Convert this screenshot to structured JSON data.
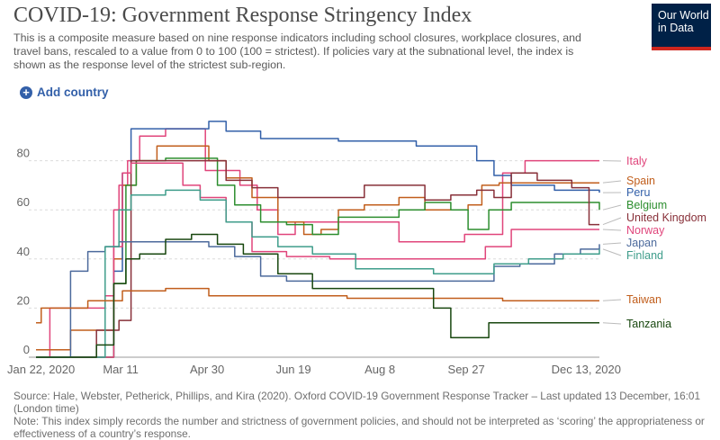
{
  "header": {
    "title": "COVID-19: Government Response Stringency Index",
    "subtitle": "This is a composite measure based on nine response indicators including school closures, workplace closures, and travel bans, rescaled to a value from 0 to 100 (100 = strictest). If policies vary at the subnational level, the index is shown as the response level of the strictest sub-region.",
    "logo_line1": "Our World",
    "logo_line2": "in Data"
  },
  "controls": {
    "add_country_label": "Add country",
    "plus_icon": "plus-circle-icon"
  },
  "footer": {
    "source": "Source: Hale, Webster, Petherick, Phillips, and Kira (2020). Oxford COVID-19 Government Response Tracker – Last updated 13 December, 16:01 (London time)",
    "note": "Note: This index simply records the number and strictness of government policies, and should not be interpreted as ‘scoring’ the appropriateness or effectiveness of a country’s response."
  },
  "chart_data": {
    "type": "line",
    "title": "COVID-19: Government Response Stringency Index",
    "xlabel": "",
    "ylabel": "",
    "ylim": [
      0,
      100
    ],
    "x_ticks": [
      {
        "label": "Jan 22, 2020",
        "day": 0
      },
      {
        "label": "Mar 11",
        "day": 49
      },
      {
        "label": "Apr 30",
        "day": 99
      },
      {
        "label": "Jun 19",
        "day": 149
      },
      {
        "label": "Aug 8",
        "day": 199
      },
      {
        "label": "Sep 27",
        "day": 249
      },
      {
        "label": "Dec 13, 2020",
        "day": 326
      }
    ],
    "y_ticks": [
      0,
      20,
      40,
      60,
      80
    ],
    "grid": "horizontal dashed",
    "legend": "right, labels at line ends",
    "series": [
      {
        "name": "Italy",
        "color": "#e0457b",
        "points": [
          [
            0,
            0
          ],
          [
            8,
            20
          ],
          [
            30,
            20
          ],
          [
            35,
            20
          ],
          [
            40,
            25
          ],
          [
            45,
            60
          ],
          [
            48,
            70
          ],
          [
            53,
            80
          ],
          [
            60,
            90
          ],
          [
            75,
            93
          ],
          [
            90,
            93
          ],
          [
            98,
            76
          ],
          [
            108,
            76
          ],
          [
            118,
            70
          ],
          [
            128,
            60
          ],
          [
            140,
            50
          ],
          [
            150,
            55
          ],
          [
            175,
            55
          ],
          [
            200,
            55
          ],
          [
            210,
            47
          ],
          [
            235,
            47
          ],
          [
            248,
            50
          ],
          [
            262,
            50
          ],
          [
            270,
            75
          ],
          [
            283,
            80
          ],
          [
            326,
            80
          ]
        ]
      },
      {
        "name": "Spain",
        "color": "#c15e1c",
        "points": [
          [
            0,
            3
          ],
          [
            10,
            3
          ],
          [
            20,
            11
          ],
          [
            38,
            11
          ],
          [
            45,
            40
          ],
          [
            50,
            70
          ],
          [
            58,
            80
          ],
          [
            70,
            86
          ],
          [
            90,
            86
          ],
          [
            100,
            80
          ],
          [
            110,
            73
          ],
          [
            125,
            65
          ],
          [
            140,
            55
          ],
          [
            155,
            50
          ],
          [
            165,
            52
          ],
          [
            175,
            60
          ],
          [
            190,
            62
          ],
          [
            210,
            65
          ],
          [
            225,
            60
          ],
          [
            250,
            62
          ],
          [
            258,
            70
          ],
          [
            268,
            71
          ],
          [
            326,
            71
          ]
        ]
      },
      {
        "name": "Peru",
        "color": "#3360a9",
        "points": [
          [
            0,
            0
          ],
          [
            30,
            0
          ],
          [
            45,
            35
          ],
          [
            50,
            75
          ],
          [
            55,
            93
          ],
          [
            100,
            96
          ],
          [
            110,
            92
          ],
          [
            130,
            89
          ],
          [
            150,
            89
          ],
          [
            175,
            88
          ],
          [
            200,
            88
          ],
          [
            220,
            86
          ],
          [
            240,
            86
          ],
          [
            255,
            80
          ],
          [
            265,
            74
          ],
          [
            275,
            70
          ],
          [
            300,
            68
          ],
          [
            326,
            67
          ]
        ]
      },
      {
        "name": "Belgium",
        "color": "#2d8e2f",
        "points": [
          [
            0,
            0
          ],
          [
            35,
            0
          ],
          [
            45,
            30
          ],
          [
            52,
            70
          ],
          [
            58,
            80
          ],
          [
            75,
            81
          ],
          [
            95,
            81
          ],
          [
            105,
            70
          ],
          [
            115,
            62
          ],
          [
            130,
            55
          ],
          [
            145,
            54
          ],
          [
            160,
            50
          ],
          [
            175,
            57
          ],
          [
            195,
            57
          ],
          [
            210,
            60
          ],
          [
            225,
            63
          ],
          [
            240,
            60
          ],
          [
            250,
            52
          ],
          [
            262,
            60
          ],
          [
            275,
            63
          ],
          [
            300,
            63
          ],
          [
            326,
            60
          ]
        ]
      },
      {
        "name": "United Kingdom",
        "color": "#883039",
        "points": [
          [
            0,
            0
          ],
          [
            35,
            11
          ],
          [
            48,
            15
          ],
          [
            55,
            80
          ],
          [
            75,
            80
          ],
          [
            95,
            80
          ],
          [
            110,
            72
          ],
          [
            125,
            69
          ],
          [
            140,
            65
          ],
          [
            160,
            65
          ],
          [
            175,
            65
          ],
          [
            190,
            70
          ],
          [
            210,
            70
          ],
          [
            225,
            64
          ],
          [
            240,
            66
          ],
          [
            255,
            68
          ],
          [
            265,
            65
          ],
          [
            275,
            75
          ],
          [
            290,
            72
          ],
          [
            310,
            69
          ],
          [
            320,
            54
          ],
          [
            326,
            54
          ]
        ]
      },
      {
        "name": "Norway",
        "color": "#e0457b",
        "points": [
          [
            0,
            0
          ],
          [
            30,
            0
          ],
          [
            45,
            45
          ],
          [
            50,
            75
          ],
          [
            55,
            79
          ],
          [
            75,
            79
          ],
          [
            85,
            70
          ],
          [
            95,
            65
          ],
          [
            110,
            55
          ],
          [
            125,
            43
          ],
          [
            145,
            41
          ],
          [
            170,
            40
          ],
          [
            200,
            40
          ],
          [
            220,
            40
          ],
          [
            245,
            40
          ],
          [
            260,
            45
          ],
          [
            275,
            52
          ],
          [
            295,
            52
          ],
          [
            326,
            52
          ]
        ]
      },
      {
        "name": "Japan",
        "color": "#4c6a9c",
        "points": [
          [
            0,
            0
          ],
          [
            20,
            35
          ],
          [
            30,
            43
          ],
          [
            40,
            45
          ],
          [
            48,
            47
          ],
          [
            55,
            47
          ],
          [
            70,
            47
          ],
          [
            85,
            47
          ],
          [
            100,
            45
          ],
          [
            115,
            41
          ],
          [
            130,
            33
          ],
          [
            145,
            31
          ],
          [
            165,
            31
          ],
          [
            185,
            31
          ],
          [
            205,
            31
          ],
          [
            225,
            31
          ],
          [
            245,
            31
          ],
          [
            265,
            37
          ],
          [
            280,
            38
          ],
          [
            300,
            42
          ],
          [
            315,
            44
          ],
          [
            326,
            46
          ]
        ]
      },
      {
        "name": "Finland",
        "color": "#3f9d8b",
        "points": [
          [
            0,
            0
          ],
          [
            25,
            0
          ],
          [
            40,
            45
          ],
          [
            48,
            60
          ],
          [
            55,
            66
          ],
          [
            75,
            68
          ],
          [
            95,
            64
          ],
          [
            110,
            55
          ],
          [
            125,
            49
          ],
          [
            140,
            45
          ],
          [
            160,
            42
          ],
          [
            185,
            36
          ],
          [
            210,
            36
          ],
          [
            230,
            34
          ],
          [
            250,
            34
          ],
          [
            265,
            38
          ],
          [
            285,
            40
          ],
          [
            305,
            42
          ],
          [
            326,
            44
          ]
        ]
      },
      {
        "name": "Taiwan",
        "color": "#c15e1c",
        "points": [
          [
            0,
            14
          ],
          [
            3,
            20
          ],
          [
            10,
            20
          ],
          [
            30,
            23
          ],
          [
            50,
            27
          ],
          [
            75,
            28
          ],
          [
            100,
            25
          ],
          [
            120,
            25
          ],
          [
            150,
            25
          ],
          [
            180,
            24
          ],
          [
            210,
            24
          ],
          [
            240,
            24
          ],
          [
            270,
            23
          ],
          [
            300,
            23
          ],
          [
            326,
            23
          ]
        ]
      },
      {
        "name": "Tanzania",
        "color": "#18470f",
        "points": [
          [
            0,
            0
          ],
          [
            35,
            5
          ],
          [
            45,
            30
          ],
          [
            52,
            40
          ],
          [
            60,
            42
          ],
          [
            75,
            48
          ],
          [
            90,
            50
          ],
          [
            105,
            46
          ],
          [
            120,
            42
          ],
          [
            140,
            34
          ],
          [
            160,
            28
          ],
          [
            180,
            28
          ],
          [
            200,
            28
          ],
          [
            220,
            28
          ],
          [
            230,
            20
          ],
          [
            240,
            8
          ],
          [
            255,
            8
          ],
          [
            262,
            14
          ],
          [
            280,
            14
          ],
          [
            300,
            14
          ],
          [
            326,
            14
          ]
        ]
      }
    ],
    "legend_labels": [
      {
        "name": "Italy",
        "color": "#e0457b"
      },
      {
        "name": "Spain",
        "color": "#c15e1c"
      },
      {
        "name": "Peru",
        "color": "#3360a9"
      },
      {
        "name": "Belgium",
        "color": "#2d8e2f"
      },
      {
        "name": "United Kingdom",
        "color": "#883039"
      },
      {
        "name": "Norway",
        "color": "#e0457b"
      },
      {
        "name": "Japan",
        "color": "#4c6a9c"
      },
      {
        "name": "Finland",
        "color": "#3f9d8b"
      },
      {
        "name": "Taiwan",
        "color": "#c15e1c"
      },
      {
        "name": "Tanzania",
        "color": "#18470f"
      }
    ]
  }
}
